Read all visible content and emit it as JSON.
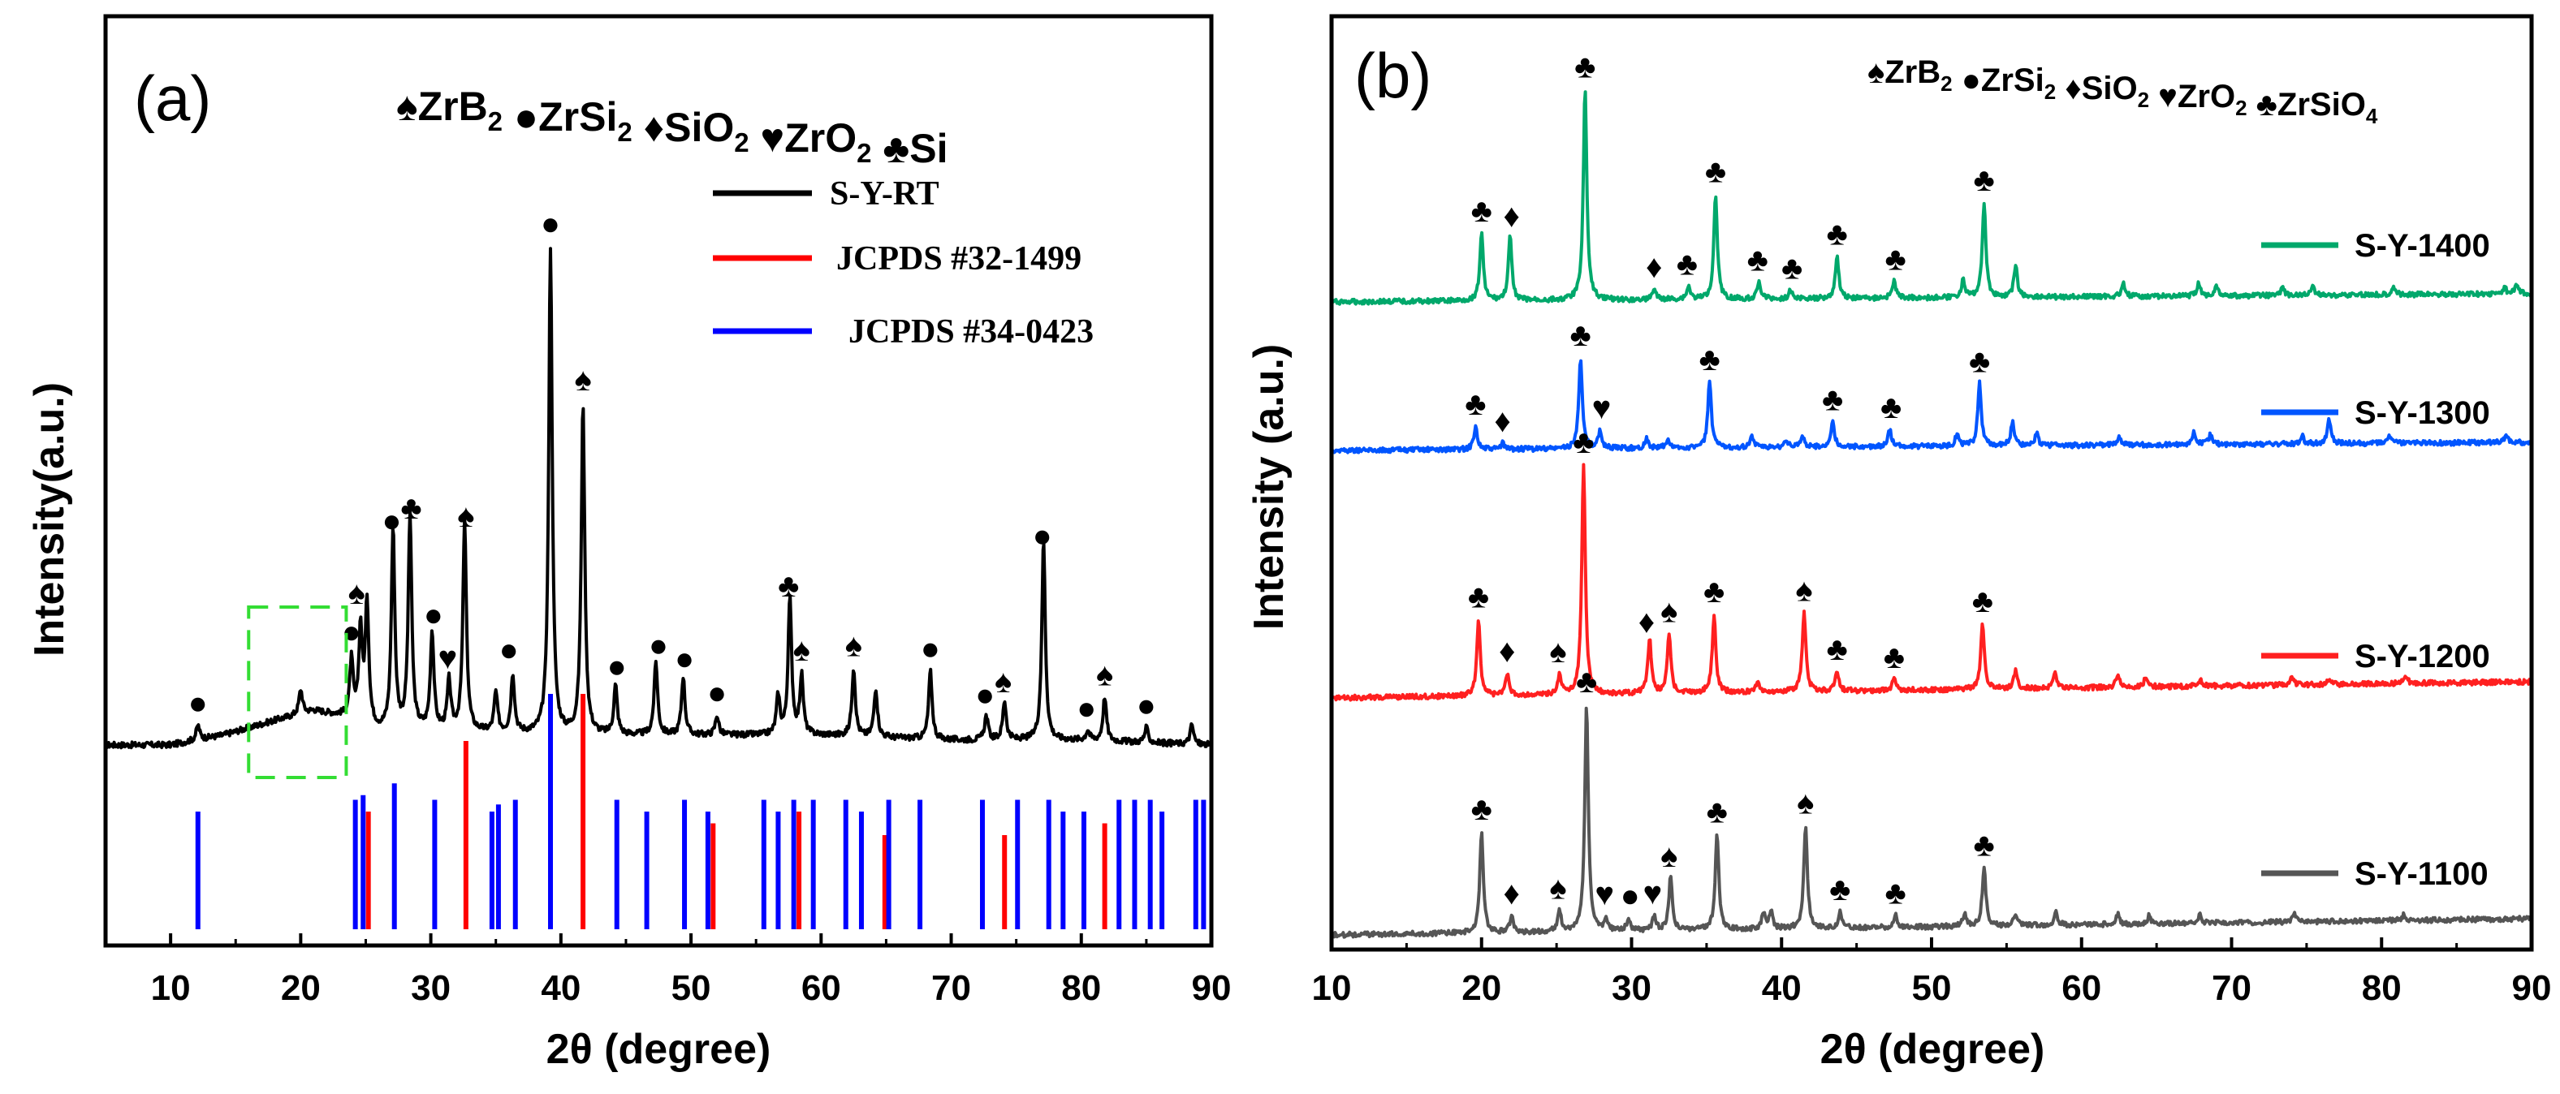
{
  "chart_data": [
    {
      "panel": "(a)",
      "type": "line",
      "xlabel": "2θ (degree)",
      "ylabel": "Intensity(a.u.)",
      "xlim": [
        5,
        90
      ],
      "xticks": [
        10,
        20,
        30,
        40,
        50,
        60,
        70,
        80,
        90
      ],
      "phase_key": [
        {
          "symbol": "♠",
          "label": "ZrB",
          "sub": "2"
        },
        {
          "symbol": "●",
          "label": "ZrSi",
          "sub": "2"
        },
        {
          "symbol": "♦",
          "label": "SiO",
          "sub": "2"
        },
        {
          "symbol": "♥",
          "label": "ZrO",
          "sub": "2"
        },
        {
          "symbol": "♣",
          "label": "Si",
          "sub": ""
        }
      ],
      "legend": [
        {
          "name": "S-Y-RT",
          "color": "#000000"
        },
        {
          "name": "JCPDS #32-1499",
          "color": "#ff0000"
        },
        {
          "name": "JCPDS #34-0423",
          "color": "#0000ff"
        }
      ],
      "highlight_range": [
        16,
        23.5
      ],
      "series": [
        {
          "name": "S-Y-RT",
          "color": "#000000",
          "baseline": [
            [
              5,
              0.02
            ],
            [
              10,
              0.02
            ],
            [
              14,
              0.04
            ],
            [
              18,
              0.07
            ],
            [
              21,
              0.09
            ],
            [
              23,
              0.08
            ],
            [
              26,
              0.05
            ],
            [
              30,
              0.05
            ],
            [
              40,
              0.04
            ],
            [
              50,
              0.04
            ],
            [
              60,
              0.04
            ],
            [
              70,
              0.03
            ],
            [
              80,
              0.03
            ],
            [
              90,
              0.02
            ]
          ],
          "peaks": [
            [
              12.1,
              0.03
            ],
            [
              20,
              0.05
            ],
            [
              23.9,
              0.12
            ],
            [
              24.6,
              0.19
            ],
            [
              25.1,
              0.25
            ],
            [
              27.1,
              0.41
            ],
            [
              28.4,
              0.44
            ],
            [
              30.1,
              0.2
            ],
            [
              31.4,
              0.1
            ],
            [
              32.6,
              0.43
            ],
            [
              35,
              0.08
            ],
            [
              36.3,
              0.12
            ],
            [
              39.2,
              1
            ],
            [
              41.7,
              0.68
            ],
            [
              44.2,
              0.1
            ],
            [
              47.3,
              0.15
            ],
            [
              49.4,
              0.12
            ],
            [
              52,
              0.04
            ],
            [
              56.7,
              0.08
            ],
            [
              57.6,
              0.28
            ],
            [
              58.5,
              0.12
            ],
            [
              62.5,
              0.14
            ],
            [
              64.2,
              0.1
            ],
            [
              68.4,
              0.14
            ],
            [
              72.7,
              0.05
            ],
            [
              74.1,
              0.08
            ],
            [
              77.1,
              0.41
            ],
            [
              80.5,
              0.02
            ],
            [
              81.8,
              0.09
            ],
            [
              85,
              0.03
            ],
            [
              88.5,
              0.04
            ]
          ]
        }
      ],
      "reference_lines": [
        {
          "name": "JCPDS #32-1499",
          "color": "#ff0000",
          "peaks": [
            [
              25.2,
              0.5
            ],
            [
              32.7,
              0.8
            ],
            [
              41.7,
              1.0
            ],
            [
              51.7,
              0.45
            ],
            [
              58.3,
              0.5
            ],
            [
              64.9,
              0.4
            ],
            [
              74.1,
              0.4
            ],
            [
              81.8,
              0.45
            ]
          ]
        },
        {
          "name": "JCPDS #34-0423",
          "color": "#0000ff",
          "peaks": [
            [
              12.1,
              0.5
            ],
            [
              24.2,
              0.55
            ],
            [
              24.8,
              0.57
            ],
            [
              27.2,
              0.62
            ],
            [
              30.3,
              0.55
            ],
            [
              34.7,
              0.5
            ],
            [
              35.2,
              0.53
            ],
            [
              36.5,
              0.55
            ],
            [
              39.2,
              1.0
            ],
            [
              44.3,
              0.55
            ],
            [
              46.6,
              0.5
            ],
            [
              49.5,
              0.55
            ],
            [
              51.3,
              0.5
            ],
            [
              55.6,
              0.55
            ],
            [
              56.7,
              0.5
            ],
            [
              57.9,
              0.55
            ],
            [
              59.4,
              0.55
            ],
            [
              61.9,
              0.55
            ],
            [
              63.1,
              0.5
            ],
            [
              65.2,
              0.55
            ],
            [
              67.6,
              0.55
            ],
            [
              72.4,
              0.55
            ],
            [
              75.1,
              0.55
            ],
            [
              77.5,
              0.55
            ],
            [
              78.6,
              0.5
            ],
            [
              80.2,
              0.5
            ],
            [
              82.9,
              0.55
            ],
            [
              84.1,
              0.55
            ],
            [
              85.3,
              0.55
            ],
            [
              86.2,
              0.5
            ],
            [
              88.8,
              0.55
            ],
            [
              89.4,
              0.55
            ]
          ]
        }
      ],
      "annotations": [
        {
          "x": 12.1,
          "symbol": "●"
        },
        {
          "x": 24.3,
          "symbol": "♠"
        },
        {
          "x": 23.9,
          "symbol": "●"
        },
        {
          "x": 27.0,
          "symbol": "●"
        },
        {
          "x": 28.5,
          "symbol": "♣"
        },
        {
          "x": 30.2,
          "symbol": "●"
        },
        {
          "x": 31.3,
          "symbol": "♥"
        },
        {
          "x": 32.7,
          "symbol": "♠"
        },
        {
          "x": 36.0,
          "symbol": "●"
        },
        {
          "x": 39.2,
          "symbol": "●"
        },
        {
          "x": 41.7,
          "symbol": "♠"
        },
        {
          "x": 44.3,
          "symbol": "●"
        },
        {
          "x": 47.5,
          "symbol": "●"
        },
        {
          "x": 49.5,
          "symbol": "●"
        },
        {
          "x": 52.0,
          "symbol": "●"
        },
        {
          "x": 57.5,
          "symbol": "♣"
        },
        {
          "x": 58.5,
          "symbol": "♠"
        },
        {
          "x": 62.5,
          "symbol": "♠"
        },
        {
          "x": 68.4,
          "symbol": "●"
        },
        {
          "x": 72.6,
          "symbol": "●"
        },
        {
          "x": 74.0,
          "symbol": "♠"
        },
        {
          "x": 77.0,
          "symbol": "●"
        },
        {
          "x": 80.4,
          "symbol": "●"
        },
        {
          "x": 81.8,
          "symbol": "♠"
        },
        {
          "x": 85.0,
          "symbol": "●"
        }
      ]
    },
    {
      "panel": "(b)",
      "type": "line",
      "xlabel": "2θ (degree)",
      "ylabel": "Intensity (a.u.)",
      "xlim": [
        10,
        90
      ],
      "xticks": [
        10,
        20,
        30,
        40,
        50,
        60,
        70,
        80,
        90
      ],
      "phase_key": [
        {
          "symbol": "♠",
          "label": "ZrB",
          "sub": "2"
        },
        {
          "symbol": "●",
          "label": "ZrSi",
          "sub": "2"
        },
        {
          "symbol": "♦",
          "label": "SiO",
          "sub": "2"
        },
        {
          "symbol": "♥",
          "label": "ZrO",
          "sub": "2"
        },
        {
          "symbol": "♣",
          "label": "ZrSiO",
          "sub": "4"
        }
      ],
      "series": [
        {
          "name": "S-Y-1400",
          "color": "#00a86b",
          "peaks": [
            [
              20,
              0.32
            ],
            [
              21.9,
              0.3
            ],
            [
              26.9,
              1
            ],
            [
              31.5,
              0.05
            ],
            [
              33.8,
              0.06
            ],
            [
              35.6,
              0.5
            ],
            [
              38.5,
              0.08
            ],
            [
              40.6,
              0.04
            ],
            [
              43.7,
              0.2
            ],
            [
              47.5,
              0.08
            ],
            [
              52.1,
              0.08
            ],
            [
              53.5,
              0.45
            ],
            [
              55.6,
              0.15
            ],
            [
              62.8,
              0.06
            ],
            [
              67.8,
              0.06
            ],
            [
              69,
              0.05
            ],
            [
              73.4,
              0.04
            ],
            [
              75.4,
              0.04
            ],
            [
              80.8,
              0.04
            ],
            [
              88.2,
              0.03
            ],
            [
              89,
              0.04
            ]
          ],
          "annotations": [
            [
              20,
              "♣"
            ],
            [
              22,
              "♦"
            ],
            [
              26.9,
              "♣"
            ],
            [
              31.5,
              "♦"
            ],
            [
              33.7,
              "♣"
            ],
            [
              35.6,
              "♣"
            ],
            [
              38.4,
              "♣"
            ],
            [
              40.7,
              "♣"
            ],
            [
              43.7,
              "♣"
            ],
            [
              47.6,
              "♣"
            ],
            [
              53.5,
              "♣"
            ]
          ]
        },
        {
          "name": "S-Y-1300",
          "color": "#0055ff",
          "peaks": [
            [
              19.6,
              0.12
            ],
            [
              21.4,
              0.03
            ],
            [
              26.6,
              0.47
            ],
            [
              27.9,
              0.09
            ],
            [
              31,
              0.05
            ],
            [
              32.4,
              0.04
            ],
            [
              35.2,
              0.34
            ],
            [
              38,
              0.06
            ],
            [
              40.3,
              0.04
            ],
            [
              41.4,
              0.06
            ],
            [
              43.4,
              0.13
            ],
            [
              47.2,
              0.09
            ],
            [
              51.7,
              0.06
            ],
            [
              53.2,
              0.32
            ],
            [
              55.4,
              0.12
            ],
            [
              57,
              0.06
            ],
            [
              62.5,
              0.05
            ],
            [
              67.5,
              0.06
            ],
            [
              68.6,
              0.05
            ],
            [
              74.7,
              0.04
            ],
            [
              76.5,
              0.12
            ],
            [
              80.5,
              0.04
            ],
            [
              88.3,
              0.04
            ]
          ],
          "annotations": [
            [
              19.6,
              "♣"
            ],
            [
              21.4,
              "♦"
            ],
            [
              26.6,
              "♣"
            ],
            [
              28.0,
              "♥"
            ],
            [
              35.2,
              "♣"
            ],
            [
              43.4,
              "♣"
            ],
            [
              47.3,
              "♣"
            ],
            [
              53.2,
              "♣"
            ]
          ]
        },
        {
          "name": "S-Y-1200",
          "color": "#ff2020",
          "peaks": [
            [
              19.8,
              0.35
            ],
            [
              21.7,
              0.1
            ],
            [
              25.2,
              0.09
            ],
            [
              26.8,
              1.05
            ],
            [
              31.2,
              0.25
            ],
            [
              32.5,
              0.27
            ],
            [
              35.5,
              0.36
            ],
            [
              38.4,
              0.05
            ],
            [
              41.5,
              0.36
            ],
            [
              43.7,
              0.09
            ],
            [
              47.5,
              0.05
            ],
            [
              53.4,
              0.3
            ],
            [
              55.6,
              0.08
            ],
            [
              58.2,
              0.07
            ],
            [
              62.4,
              0.06
            ],
            [
              64.3,
              0.05
            ],
            [
              67.9,
              0.03
            ],
            [
              74,
              0.04
            ],
            [
              76.5,
              0.03
            ],
            [
              81.6,
              0.04
            ]
          ],
          "annotations": [
            [
              19.8,
              "♣"
            ],
            [
              21.7,
              "♦"
            ],
            [
              25.1,
              "♠"
            ],
            [
              26.8,
              "♣"
            ],
            [
              31.0,
              "♦"
            ],
            [
              32.5,
              "♠"
            ],
            [
              35.5,
              "♣"
            ],
            [
              41.5,
              "♠"
            ],
            [
              43.7,
              "♣"
            ],
            [
              47.5,
              "♣"
            ],
            [
              53.4,
              "♣"
            ]
          ]
        },
        {
          "name": "S-Y-1100",
          "color": "#555555",
          "peaks": [
            [
              20,
              0.5
            ],
            [
              22,
              0.08
            ],
            [
              25.2,
              0.1
            ],
            [
              27,
              1.12
            ],
            [
              28.3,
              0.06
            ],
            [
              29.8,
              0.06
            ],
            [
              31.5,
              0.07
            ],
            [
              32.6,
              0.26
            ],
            [
              35.7,
              0.47
            ],
            [
              38.8,
              0.08
            ],
            [
              39.3,
              0.08
            ],
            [
              41.6,
              0.51
            ],
            [
              43.9,
              0.08
            ],
            [
              47.6,
              0.06
            ],
            [
              52.2,
              0.06
            ],
            [
              53.5,
              0.29
            ],
            [
              55.6,
              0.06
            ],
            [
              58.3,
              0.06
            ],
            [
              62.4,
              0.05
            ],
            [
              64.5,
              0.04
            ],
            [
              67.9,
              0.04
            ],
            [
              74.2,
              0.04
            ],
            [
              81.5,
              0.03
            ]
          ],
          "annotations": [
            [
              20,
              "♣"
            ],
            [
              22,
              "♦"
            ],
            [
              25.1,
              "♠"
            ],
            [
              28.2,
              "♥"
            ],
            [
              29.9,
              "●"
            ],
            [
              31.4,
              "♥"
            ],
            [
              32.5,
              "♠"
            ],
            [
              35.7,
              "♣"
            ],
            [
              27,
              "♣"
            ],
            [
              41.6,
              "♠"
            ],
            [
              43.9,
              "♣"
            ],
            [
              47.6,
              "♣"
            ],
            [
              53.5,
              "♣"
            ]
          ]
        }
      ]
    }
  ]
}
